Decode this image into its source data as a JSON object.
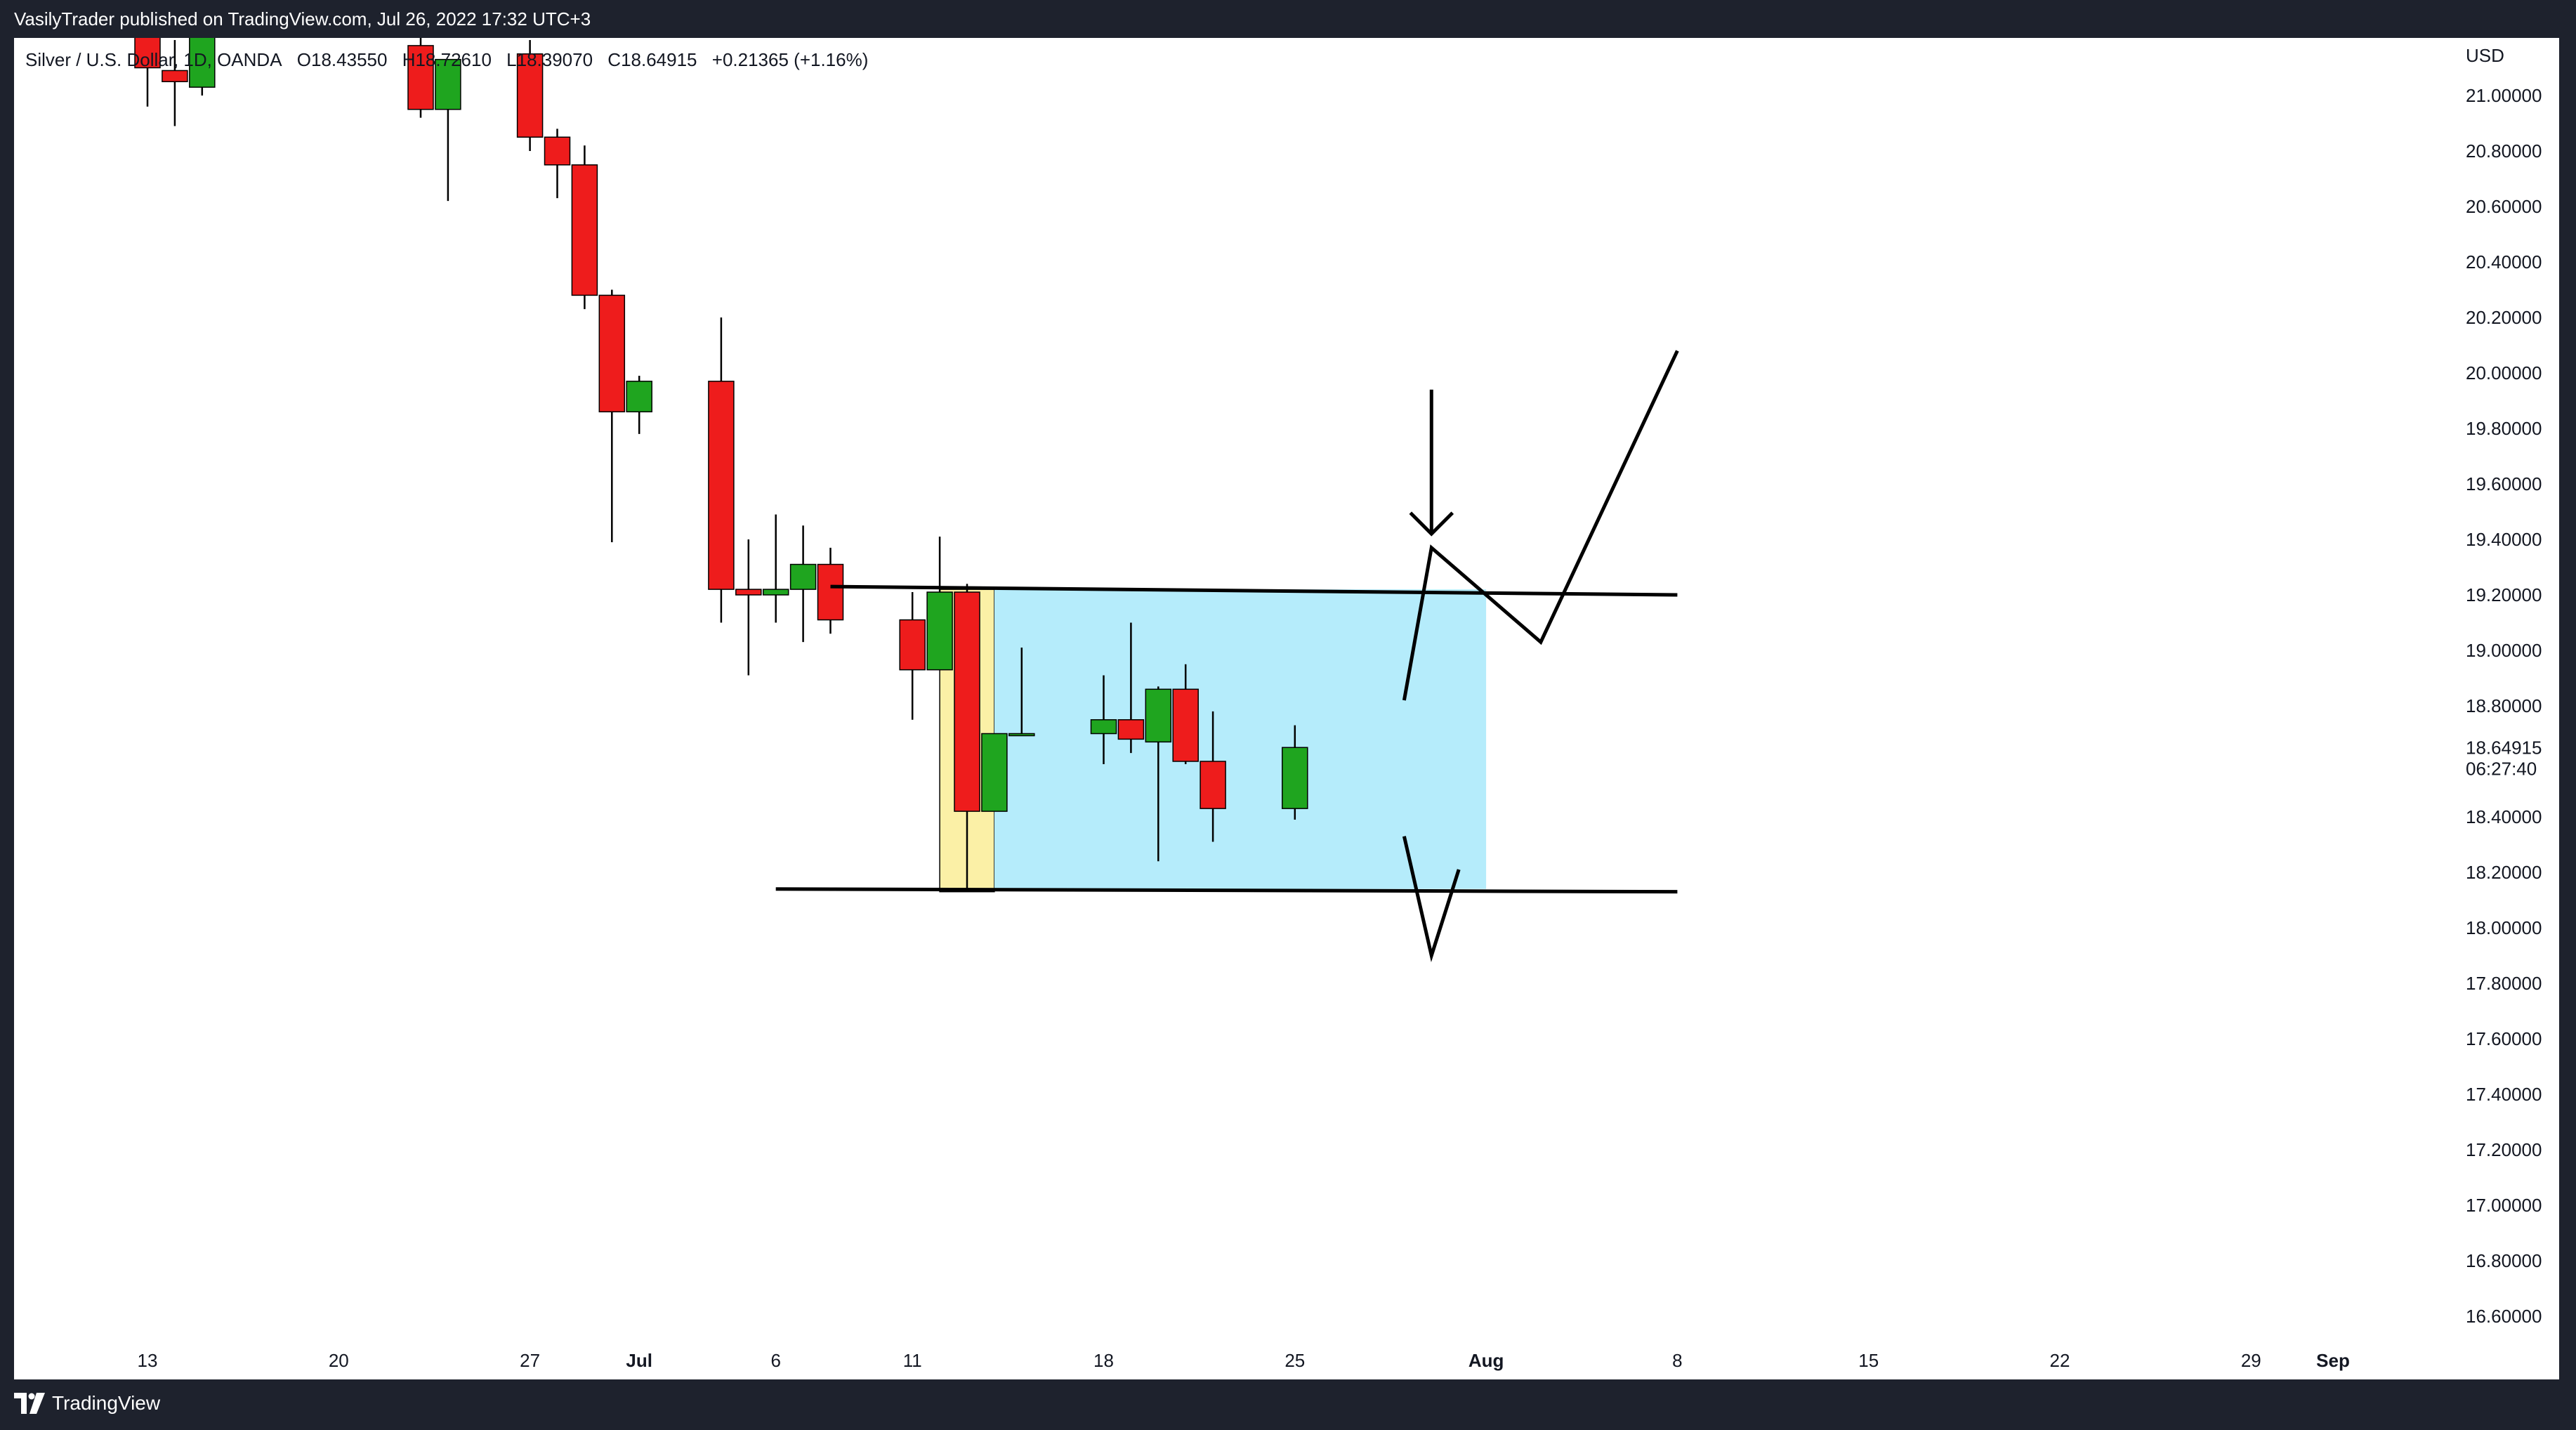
{
  "header": {
    "publisher_line": "VasilyTrader published on TradingView.com, Jul 26, 2022 17:32 UTC+3"
  },
  "footer": {
    "brand": "TradingView",
    "logo_icon": "tradingview-logo-icon"
  },
  "legend": {
    "symbol": "Silver / U.S. Dollar, 1D, OANDA",
    "open": "O18.43550",
    "high": "H18.72610",
    "low": "L18.39070",
    "close": "C18.64915",
    "change": "+0.21365 (+1.16%)"
  },
  "colors": {
    "up": "#1fa51f",
    "down": "#ee1c1c",
    "yellow_box": "#fbf0a6",
    "blue_box": "#b5ecfb",
    "drawing": "#000000"
  },
  "chart_data": {
    "type": "candlestick",
    "x_unit": "date",
    "currency_label": "USD",
    "last_price": "18.64915",
    "countdown": "06:27:40",
    "y_ticks": [
      "21.00000",
      "20.80000",
      "20.60000",
      "20.40000",
      "20.20000",
      "20.00000",
      "19.80000",
      "19.60000",
      "19.40000",
      "19.20000",
      "19.00000",
      "18.80000",
      "18.40000",
      "18.20000",
      "18.00000",
      "17.80000",
      "17.60000",
      "17.40000",
      "17.20000",
      "17.00000",
      "16.80000",
      "16.60000"
    ],
    "x_ticks": [
      {
        "date": "2022-06-13",
        "label": "13",
        "bold": false
      },
      {
        "date": "2022-06-20",
        "label": "20",
        "bold": false
      },
      {
        "date": "2022-06-27",
        "label": "27",
        "bold": false
      },
      {
        "date": "2022-07-01",
        "label": "Jul",
        "bold": true
      },
      {
        "date": "2022-07-06",
        "label": "6",
        "bold": false
      },
      {
        "date": "2022-07-11",
        "label": "11",
        "bold": false
      },
      {
        "date": "2022-07-18",
        "label": "18",
        "bold": false
      },
      {
        "date": "2022-07-25",
        "label": "25",
        "bold": false
      },
      {
        "date": "2022-08-01",
        "label": "Aug",
        "bold": true
      },
      {
        "date": "2022-08-08",
        "label": "8",
        "bold": false
      },
      {
        "date": "2022-08-15",
        "label": "15",
        "bold": false
      },
      {
        "date": "2022-08-22",
        "label": "22",
        "bold": false
      },
      {
        "date": "2022-08-29",
        "label": "29",
        "bold": false
      },
      {
        "date": "2022-09-01",
        "label": "Sep",
        "bold": true
      }
    ],
    "candles": [
      {
        "date": "2022-06-13",
        "open": 21.23,
        "high": 21.35,
        "low": 20.96,
        "close": 21.1
      },
      {
        "date": "2022-06-14",
        "open": 21.09,
        "high": 21.2,
        "low": 20.89,
        "close": 21.05
      },
      {
        "date": "2022-06-15",
        "open": 21.03,
        "high": 21.3,
        "low": 21.0,
        "close": 21.24
      },
      {
        "date": "2022-06-23",
        "open": 21.18,
        "high": 21.32,
        "low": 20.92,
        "close": 20.95
      },
      {
        "date": "2022-06-24",
        "open": 20.95,
        "high": 21.1,
        "low": 20.62,
        "close": 21.13
      },
      {
        "date": "2022-06-27",
        "open": 21.15,
        "high": 21.2,
        "low": 20.8,
        "close": 20.85
      },
      {
        "date": "2022-06-28",
        "open": 20.85,
        "high": 20.88,
        "low": 20.63,
        "close": 20.75
      },
      {
        "date": "2022-06-29",
        "open": 20.75,
        "high": 20.82,
        "low": 20.23,
        "close": 20.28
      },
      {
        "date": "2022-06-30",
        "open": 20.28,
        "high": 20.3,
        "low": 19.39,
        "close": 19.86
      },
      {
        "date": "2022-07-01",
        "open": 19.86,
        "high": 19.99,
        "low": 19.78,
        "close": 19.97
      },
      {
        "date": "2022-07-04",
        "open": 19.97,
        "high": 20.2,
        "low": 19.1,
        "close": 19.22
      },
      {
        "date": "2022-07-05",
        "open": 19.22,
        "high": 19.4,
        "low": 18.91,
        "close": 19.2
      },
      {
        "date": "2022-07-06",
        "open": 19.2,
        "high": 19.49,
        "low": 19.1,
        "close": 19.22
      },
      {
        "date": "2022-07-07",
        "open": 19.22,
        "high": 19.45,
        "low": 19.03,
        "close": 19.31
      },
      {
        "date": "2022-07-08",
        "open": 19.31,
        "high": 19.37,
        "low": 19.06,
        "close": 19.11
      },
      {
        "date": "2022-07-11",
        "open": 19.11,
        "high": 19.21,
        "low": 18.75,
        "close": 18.93
      },
      {
        "date": "2022-07-12",
        "open": 18.93,
        "high": 19.41,
        "low": 18.93,
        "close": 19.21
      },
      {
        "date": "2022-07-13",
        "open": 19.21,
        "high": 19.24,
        "low": 18.13,
        "close": 18.42
      },
      {
        "date": "2022-07-14",
        "open": 18.42,
        "high": 18.7,
        "low": 18.42,
        "close": 18.7
      },
      {
        "date": "2022-07-15",
        "open": 18.7,
        "high": 19.01,
        "low": 18.7,
        "close": 18.7
      },
      {
        "date": "2022-07-18",
        "open": 18.7,
        "high": 18.91,
        "low": 18.59,
        "close": 18.75
      },
      {
        "date": "2022-07-19",
        "open": 18.75,
        "high": 19.1,
        "low": 18.63,
        "close": 18.68
      },
      {
        "date": "2022-07-20",
        "open": 18.67,
        "high": 18.87,
        "low": 18.24,
        "close": 18.86
      },
      {
        "date": "2022-07-21",
        "open": 18.86,
        "high": 18.95,
        "low": 18.59,
        "close": 18.6
      },
      {
        "date": "2022-07-22",
        "open": 18.6,
        "high": 18.78,
        "low": 18.31,
        "close": 18.43
      },
      {
        "date": "2022-07-25",
        "open": 18.43,
        "high": 18.73,
        "low": 18.39,
        "close": 18.65
      }
    ],
    "drawings": {
      "yellow_box": {
        "x1": "2022-07-12",
        "x2": "2022-07-14",
        "y1": 19.22,
        "y2": 18.13
      },
      "blue_box": {
        "x1": "2022-07-14",
        "x2": "2022-08-01",
        "y1": 19.22,
        "y2": 18.14
      },
      "resistance_line": {
        "x1": "2022-07-08",
        "y1": 19.23,
        "x2": "2022-08-08",
        "y2": 19.2
      },
      "support_line": {
        "x1": "2022-07-06",
        "y1": 18.14,
        "x2": "2022-08-08",
        "y2": 18.13
      },
      "bullish_path": [
        {
          "x": "2022-07-29",
          "y": 18.82
        },
        {
          "x": "2022-07-30",
          "y": 19.37
        },
        {
          "x": "2022-08-03",
          "y": 19.03
        },
        {
          "x": "2022-08-08",
          "y": 20.08
        }
      ],
      "bearish_path": [
        {
          "x": "2022-07-29",
          "y": 18.33
        },
        {
          "x": "2022-07-30",
          "y": 17.9
        },
        {
          "x": "2022-07-31",
          "y": 18.21
        }
      ],
      "arrow": {
        "x": "2022-07-30",
        "y_from": 19.94,
        "y_to": 19.42
      }
    }
  }
}
